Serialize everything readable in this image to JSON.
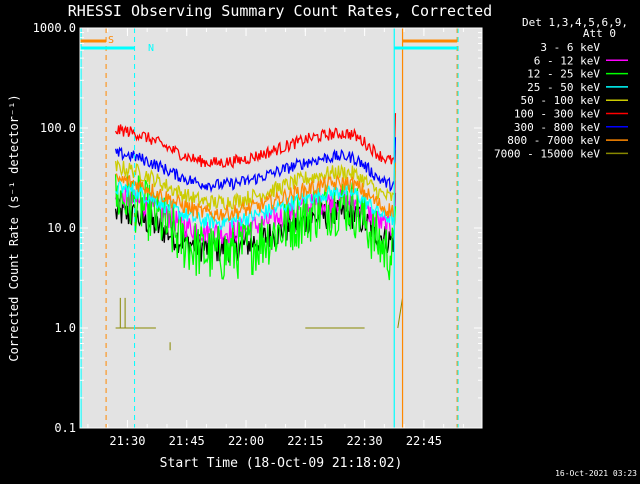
{
  "chart_data": {
    "type": "line",
    "title": "RHESSI Observing Summary Count Rates, Corrected",
    "xlabel": "Start Time (18-Oct-09 21:18:02)",
    "ylabel": "Corrected Count Rate (s⁻¹ detector⁻¹)",
    "yscale": "log",
    "ylim": [
      0.1,
      1000
    ],
    "xlim_minutes": [
      21.3,
      22.995
    ],
    "x_tick_minutes": [
      21.5,
      21.75,
      22.0,
      22.25,
      22.5,
      22.75
    ],
    "x_tick_labels": [
      "21:30",
      "21:45",
      "22:00",
      "22:15",
      "22:30",
      "22:45"
    ],
    "y_tick_values": [
      0.1,
      1,
      10,
      100,
      1000
    ],
    "y_tick_labels": [
      "0.1",
      "1.0",
      "10.0",
      "100.0",
      "1000.0"
    ],
    "legend_title": [
      "Det 1,3,4,5,6,9,",
      "Att 0"
    ],
    "legend_position": "right",
    "series": [
      {
        "name": "3 - 6 keV",
        "color": "#000000",
        "start": 14,
        "trough": 6.2,
        "peak": 14,
        "end": 7.5,
        "noise": 0.15
      },
      {
        "name": "6 - 12 keV",
        "color": "#ff00ff",
        "start": 20,
        "trough": 9,
        "peak": 19,
        "end": 10,
        "noise": 0.12
      },
      {
        "name": "12 - 25 keV",
        "color": "#00ff00",
        "start": 20,
        "trough": 5.5,
        "peak": 17,
        "end": 5.5,
        "noise": 0.3
      },
      {
        "name": "25 - 50 keV",
        "color": "#00ffff",
        "start": 25,
        "trough": 11.5,
        "peak": 23,
        "end": 12.5,
        "noise": 0.08
      },
      {
        "name": "50 - 100 keV",
        "color": "#cccc00",
        "start": 40,
        "trough": 18,
        "peak": 36,
        "end": 20,
        "noise": 0.08
      },
      {
        "name": "100 - 300 keV",
        "color": "#ff0000",
        "start": 95,
        "trough": 45,
        "peak": 88,
        "end": 47,
        "noise": 0.06
      },
      {
        "name": "300 - 800 keV",
        "color": "#0000ff",
        "start": 55,
        "trough": 27,
        "peak": 52,
        "end": 27,
        "noise": 0.06
      },
      {
        "name": "800 - 7000 keV",
        "color": "#ff8800",
        "start": 30,
        "trough": 14,
        "peak": 28,
        "end": 15,
        "noise": 0.08
      },
      {
        "name": "7000 - 15000 keV",
        "color": "#888800",
        "start": 1.0,
        "trough": 1.0,
        "peak": 1.0,
        "end": 1.0,
        "noise": 0.0
      }
    ],
    "attenuator_flags": [
      {
        "label": "S",
        "color": "#ff8800"
      },
      {
        "label": "N",
        "color": "#00ffff"
      }
    ],
    "timestamp": "16-Oct-2021 03:23"
  }
}
